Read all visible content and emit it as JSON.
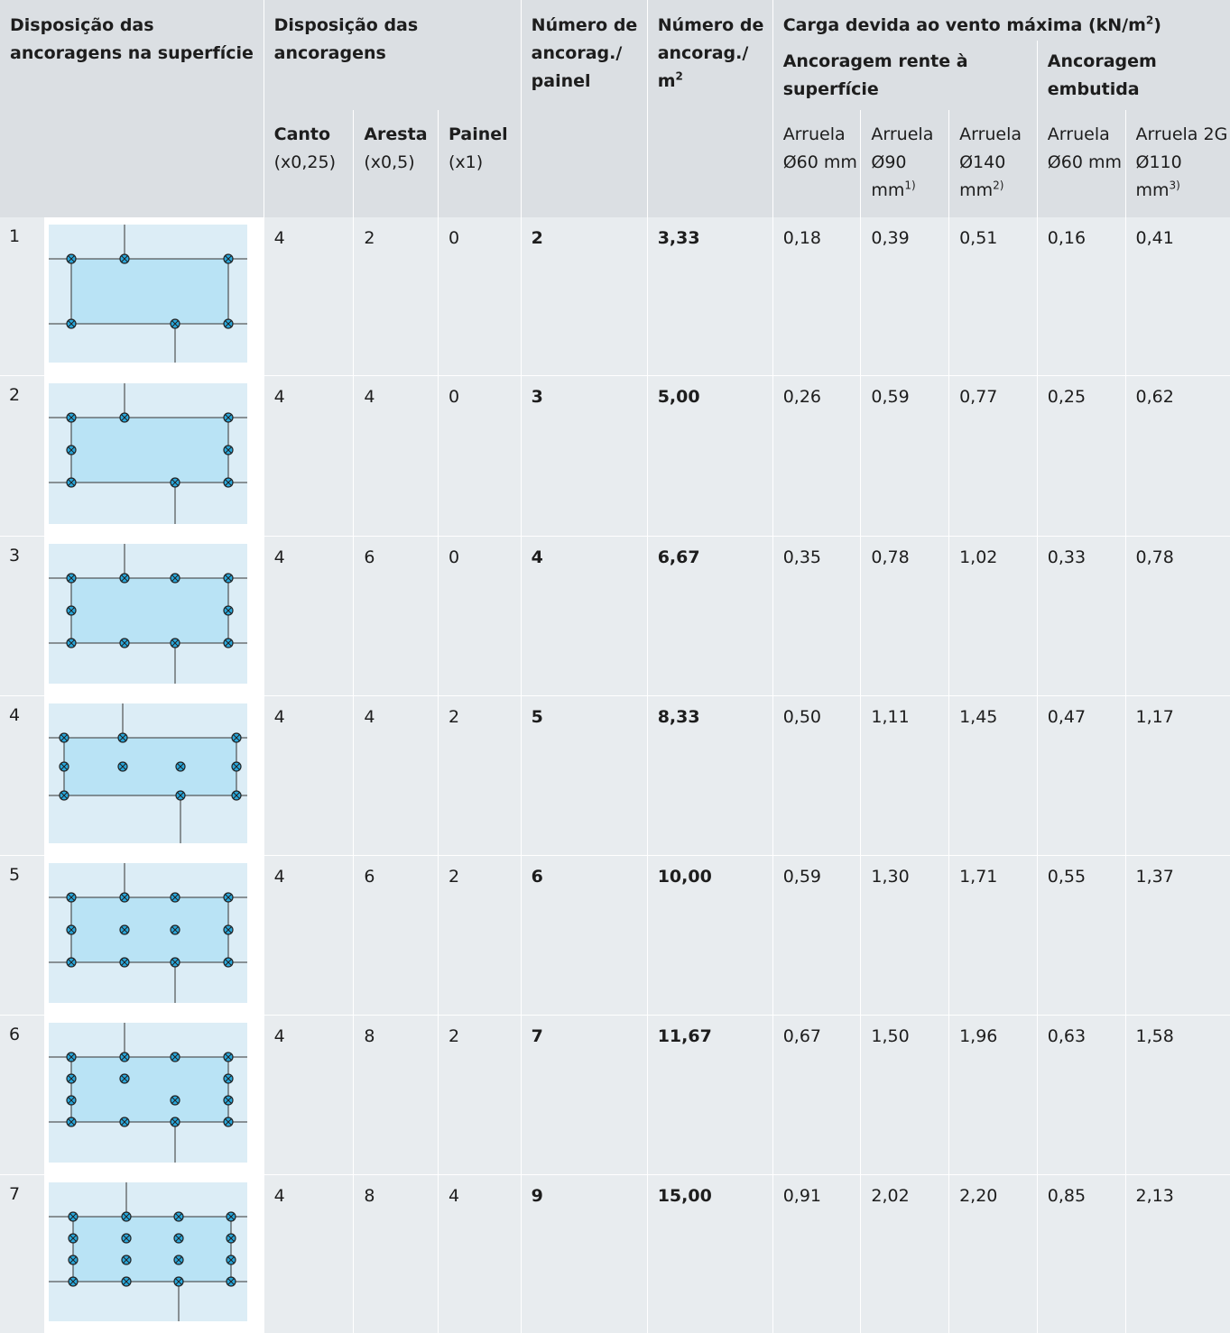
{
  "header": {
    "layout_surface": "Disposição das ancoragens na superfície",
    "layout": "Disposição das ancoragens",
    "corner": "Canto",
    "corner_mult": "(x0,25)",
    "edge": "Aresta",
    "edge_mult": "(x0,5)",
    "panel": "Painel",
    "panel_mult": "(x1)",
    "per_panel": "Número de ancorag./ painel",
    "per_m2_text": "Número de ancorag./ m",
    "per_m2_sup": "2",
    "wind_text": "Carga devida ao vento máxima  (kN/m",
    "wind_sup": "2",
    "wind_close": ")",
    "flush": "Ancoragem rente à superfície",
    "embedded": "Ancoragem embutida",
    "washers": [
      {
        "label": "Arruela Ø60 mm",
        "sup": ""
      },
      {
        "label": "Arruela Ø90 mm",
        "sup": "1)"
      },
      {
        "label": "Arruela Ø140 mm",
        "sup": "2)"
      },
      {
        "label": "Arruela Ø60 mm",
        "sup": ""
      },
      {
        "label": "Arruela 2G Ø110 mm",
        "sup": "3)"
      }
    ]
  },
  "rows": [
    {
      "n": "1",
      "corner": "4",
      "edge": "2",
      "panel": "0",
      "per_panel": "2",
      "per_m2": "3,33",
      "w60": "0,18",
      "w90": "0,39",
      "w140": "0,51",
      "e60": "0,16",
      "e110": "0,41"
    },
    {
      "n": "2",
      "corner": "4",
      "edge": "4",
      "panel": "0",
      "per_panel": "3",
      "per_m2": "5,00",
      "w60": "0,26",
      "w90": "0,59",
      "w140": "0,77",
      "e60": "0,25",
      "e110": "0,62"
    },
    {
      "n": "3",
      "corner": "4",
      "edge": "6",
      "panel": "0",
      "per_panel": "4",
      "per_m2": "6,67",
      "w60": "0,35",
      "w90": "0,78",
      "w140": "1,02",
      "e60": "0,33",
      "e110": "0,78"
    },
    {
      "n": "4",
      "corner": "4",
      "edge": "4",
      "panel": "2",
      "per_panel": "5",
      "per_m2": "8,33",
      "w60": "0,50",
      "w90": "1,11",
      "w140": "1,45",
      "e60": "0,47",
      "e110": "1,17"
    },
    {
      "n": "5",
      "corner": "4",
      "edge": "6",
      "panel": "2",
      "per_panel": "6",
      "per_m2": "10,00",
      "w60": "0,59",
      "w90": "1,30",
      "w140": "1,71",
      "e60": "0,55",
      "e110": "1,37"
    },
    {
      "n": "6",
      "corner": "4",
      "edge": "8",
      "panel": "2",
      "per_panel": "7",
      "per_m2": "11,67",
      "w60": "0,67",
      "w90": "1,50",
      "w140": "1,96",
      "e60": "0,63",
      "e110": "1,58"
    },
    {
      "n": "7",
      "corner": "4",
      "edge": "8",
      "panel": "4",
      "per_panel": "9",
      "per_m2": "15,00",
      "w60": "0,91",
      "w90": "2,02",
      "w140": "2,20",
      "e60": "0,85",
      "e110": "2,13"
    }
  ]
}
